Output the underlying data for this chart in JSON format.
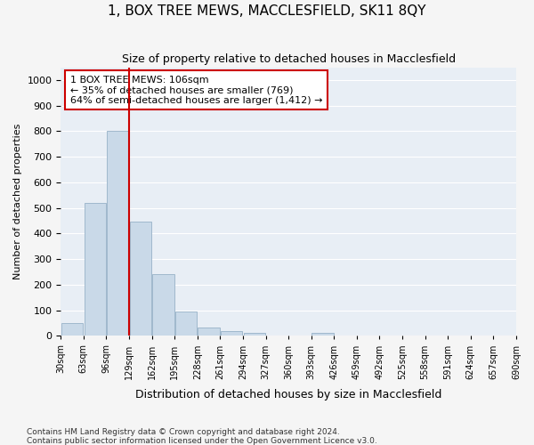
{
  "title": "1, BOX TREE MEWS, MACCLESFIELD, SK11 8QY",
  "subtitle": "Size of property relative to detached houses in Macclesfield",
  "xlabel": "Distribution of detached houses by size in Macclesfield",
  "ylabel": "Number of detached properties",
  "bar_color": "#c9d9e8",
  "bar_edge_color": "#a0b8cc",
  "background_color": "#e8eef5",
  "grid_color": "#ffffff",
  "annotation_box_color": "#cc0000",
  "vline_color": "#cc0000",
  "vline_x": 2.5,
  "annotation_text": "1 BOX TREE MEWS: 106sqm\n← 35% of detached houses are smaller (769)\n64% of semi-detached houses are larger (1,412) →",
  "tick_labels": [
    "30sqm",
    "63sqm",
    "96sqm",
    "129sqm",
    "162sqm",
    "195sqm",
    "228sqm",
    "261sqm",
    "294sqm",
    "327sqm",
    "360sqm",
    "393sqm",
    "426sqm",
    "459sqm",
    "492sqm",
    "525sqm",
    "558sqm",
    "591sqm",
    "624sqm",
    "657sqm",
    "690sqm"
  ],
  "values": [
    50,
    520,
    800,
    445,
    240,
    95,
    33,
    18,
    10,
    0,
    0,
    10,
    0,
    0,
    0,
    0,
    0,
    0,
    0,
    0
  ],
  "ylim": [
    0,
    1050
  ],
  "yticks": [
    0,
    100,
    200,
    300,
    400,
    500,
    600,
    700,
    800,
    900,
    1000
  ],
  "footnote1": "Contains HM Land Registry data © Crown copyright and database right 2024.",
  "footnote2": "Contains public sector information licensed under the Open Government Licence v3.0."
}
